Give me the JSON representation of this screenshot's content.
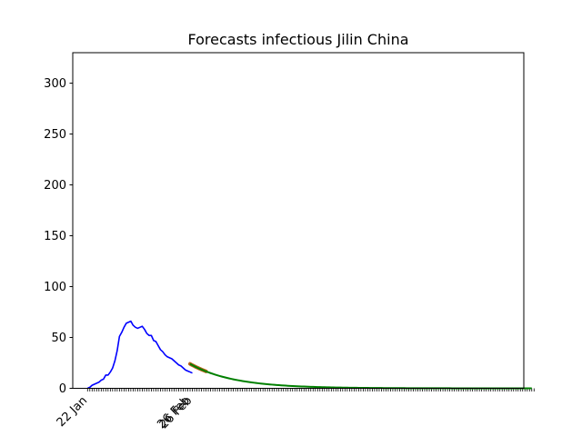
{
  "chart_data": {
    "type": "line",
    "title": "Forecasts infectious Jilin China",
    "xlabel": "",
    "ylabel": "",
    "ylim": [
      0,
      330
    ],
    "xlim": [
      -6.5,
      191.5
    ],
    "x_tick_labels": [
      {
        "pos": 0,
        "label": "22 Jan"
      },
      {
        "pos": 45,
        "label": "26 Feb"
      },
      {
        "pos": 46,
        "label": "26 Feb"
      }
    ],
    "x_minor_tick_count": 197,
    "yticks": [
      0,
      50,
      100,
      150,
      200,
      250,
      300
    ],
    "grid": false,
    "series": [
      {
        "color": "#0000ff",
        "style": "observed",
        "x": [
          0,
          1,
          2,
          3,
          4,
          5,
          6,
          7,
          8,
          9,
          10,
          11,
          12,
          13,
          14,
          15,
          16,
          17,
          18,
          19,
          20,
          21,
          22,
          23,
          24,
          25,
          26,
          27,
          28,
          29,
          30,
          31,
          32,
          33,
          34,
          35,
          36,
          37,
          38,
          39,
          40,
          41,
          42,
          43,
          44,
          45,
          46
        ],
        "values": [
          0,
          1,
          3,
          4,
          5,
          6,
          8,
          9,
          13,
          13,
          16,
          20,
          27,
          37,
          51,
          55,
          60,
          64,
          65,
          66,
          62,
          60,
          59,
          60,
          61,
          58,
          54,
          52,
          52,
          47,
          46,
          42,
          38,
          36,
          33,
          31,
          30,
          29,
          27,
          25,
          23,
          22,
          20,
          18,
          17,
          16,
          15
        ]
      },
      {
        "color": "#008000",
        "style": "forecast-median",
        "x_start": 45,
        "x_end": 195,
        "start_value": 24,
        "decay_per_day": 0.0525
      },
      {
        "color": "#b05000",
        "style": "forecast-band",
        "x_start": 45,
        "x_end": 52,
        "start_value": 24,
        "decay_per_day": 0.052
      }
    ]
  }
}
